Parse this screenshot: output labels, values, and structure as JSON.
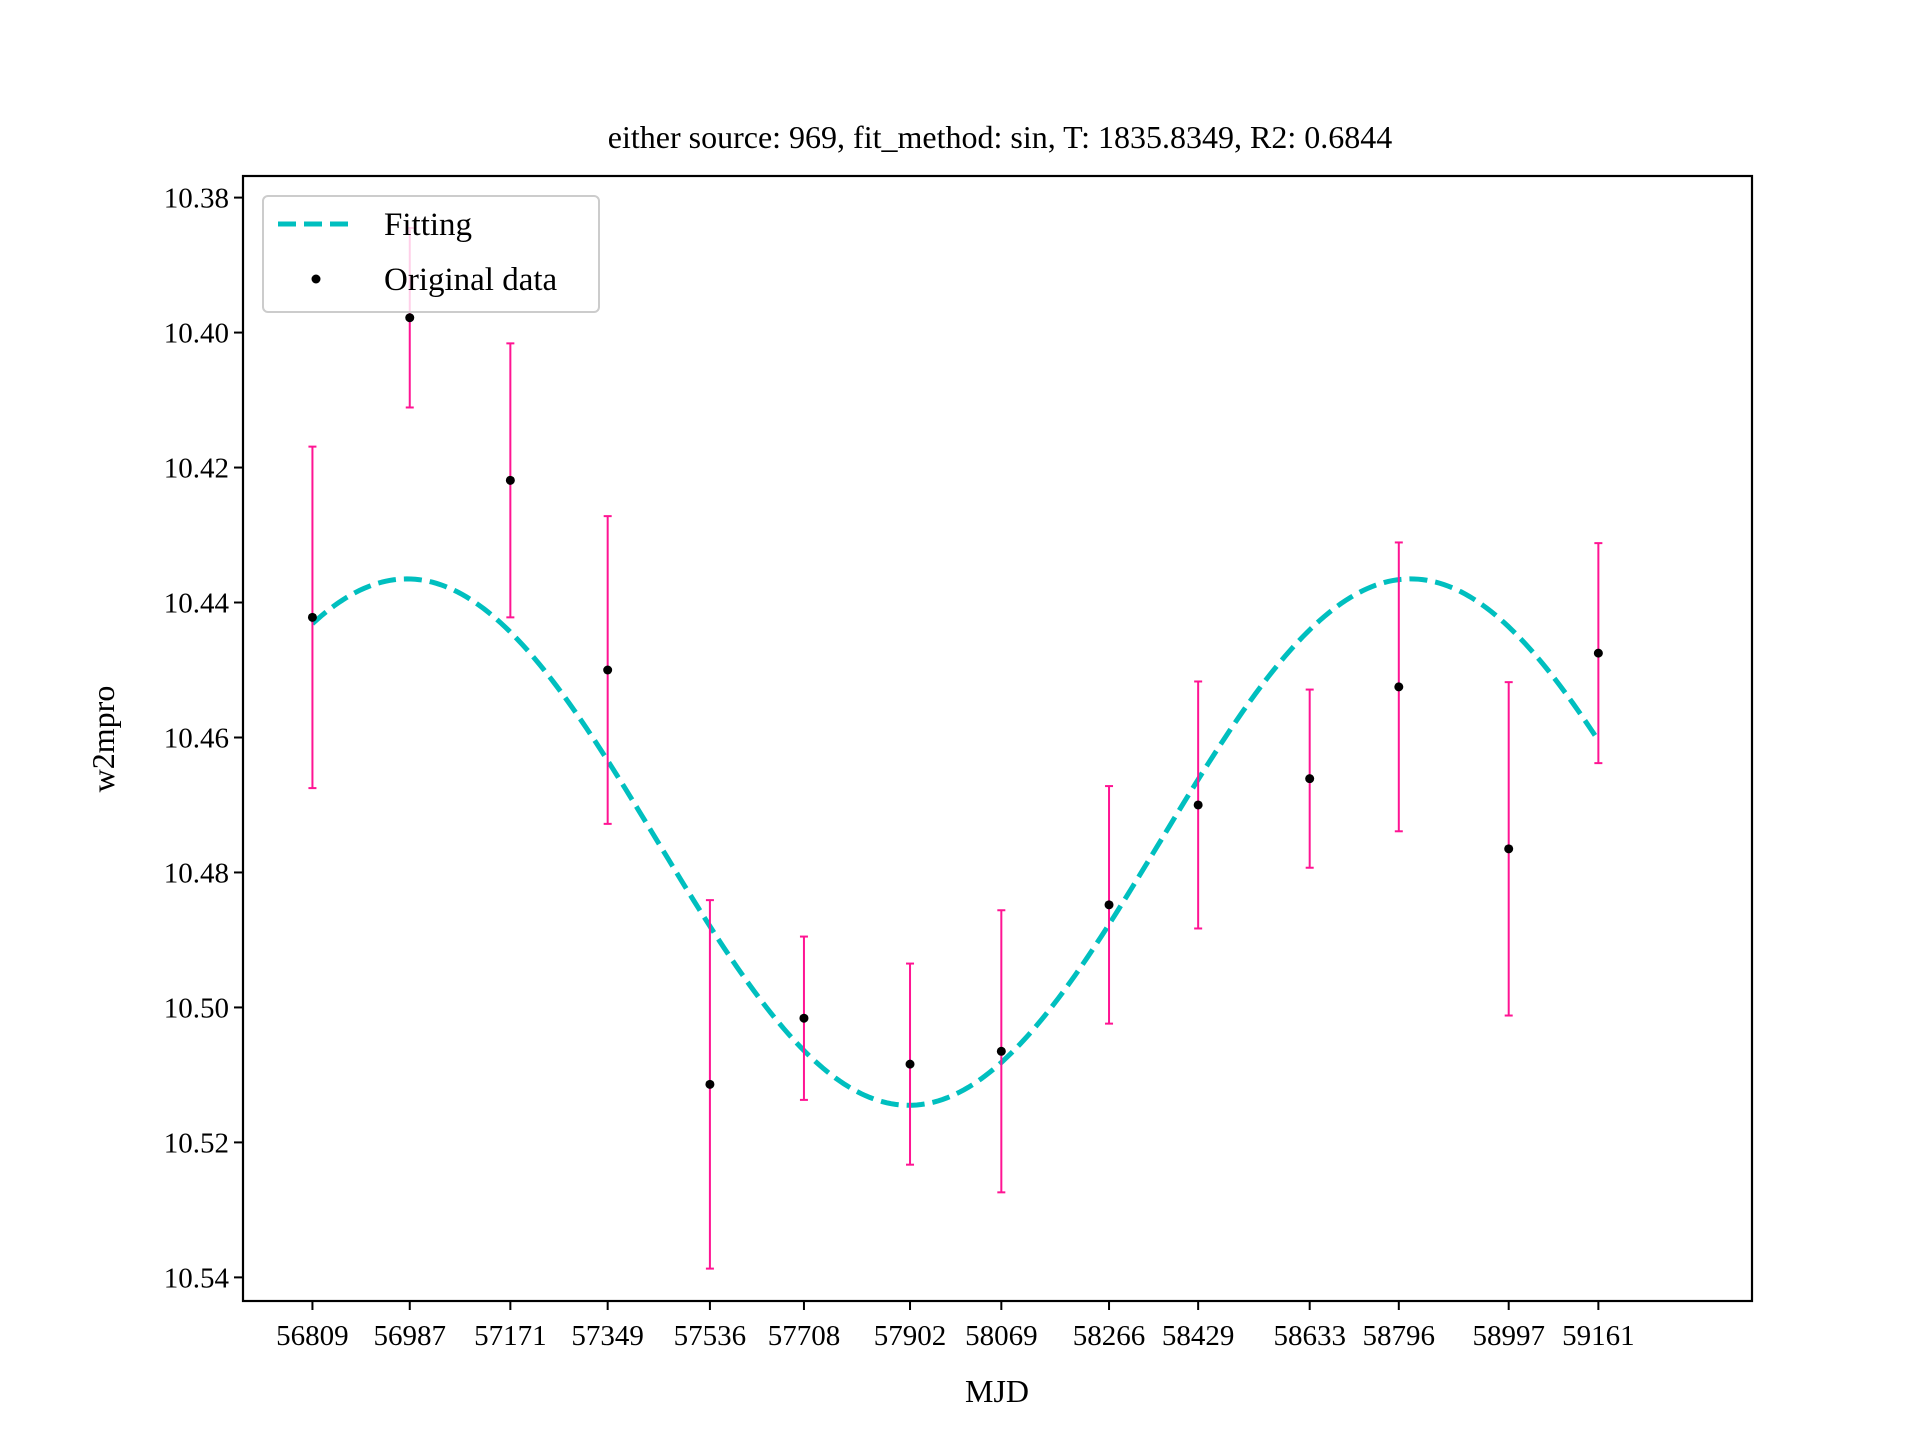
{
  "chart_data": {
    "type": "scatter",
    "title": "either source: 969,  fit_method: sin,  T: 1835.8349,  R2: 0.6844",
    "xlabel": "MJD",
    "ylabel": "w2mpro",
    "y_inverted": true,
    "ylim": [
      10.5435,
      10.3768
    ],
    "xlim": [
      56682,
      59442
    ],
    "yticks": [
      "10.38",
      "10.40",
      "10.42",
      "10.44",
      "10.46",
      "10.48",
      "10.50",
      "10.52",
      "10.54"
    ],
    "xticks": [
      "56809",
      "56987",
      "57171",
      "57349",
      "57536",
      "57708",
      "57902",
      "58069",
      "58266",
      "58429",
      "58633",
      "58796",
      "58997",
      "59161"
    ],
    "legend_position": "top-left",
    "series": [
      {
        "name": "Fitting",
        "kind": "line",
        "style": "dashed",
        "color": "#00BFBF",
        "model": {
          "function": "sin",
          "period": 1835.8349,
          "amplitude": 0.039,
          "offset": 10.4755,
          "peak_x": 56982
        },
        "x_range": [
          56809,
          59161
        ]
      },
      {
        "name": "Original data",
        "kind": "errorbar",
        "marker_color": "#000000",
        "error_color": "#FF1493",
        "points": [
          {
            "x": 56809,
            "y": 10.4422,
            "err": 0.0253
          },
          {
            "x": 56987,
            "y": 10.3978,
            "err": 0.0133
          },
          {
            "x": 57171,
            "y": 10.4219,
            "err": 0.0203
          },
          {
            "x": 57349,
            "y": 10.45,
            "err": 0.0228
          },
          {
            "x": 57536,
            "y": 10.5114,
            "err": 0.0273
          },
          {
            "x": 57708,
            "y": 10.5016,
            "err": 0.0121
          },
          {
            "x": 57902,
            "y": 10.5084,
            "err": 0.0149
          },
          {
            "x": 58069,
            "y": 10.5065,
            "err": 0.0209
          },
          {
            "x": 58266,
            "y": 10.4848,
            "err": 0.0176
          },
          {
            "x": 58429,
            "y": 10.47,
            "err": 0.0183
          },
          {
            "x": 58633,
            "y": 10.4661,
            "err": 0.0132
          },
          {
            "x": 58796,
            "y": 10.4525,
            "err": 0.0214
          },
          {
            "x": 58997,
            "y": 10.4765,
            "err": 0.0247
          },
          {
            "x": 59161,
            "y": 10.4475,
            "err": 0.0163
          }
        ]
      }
    ]
  }
}
